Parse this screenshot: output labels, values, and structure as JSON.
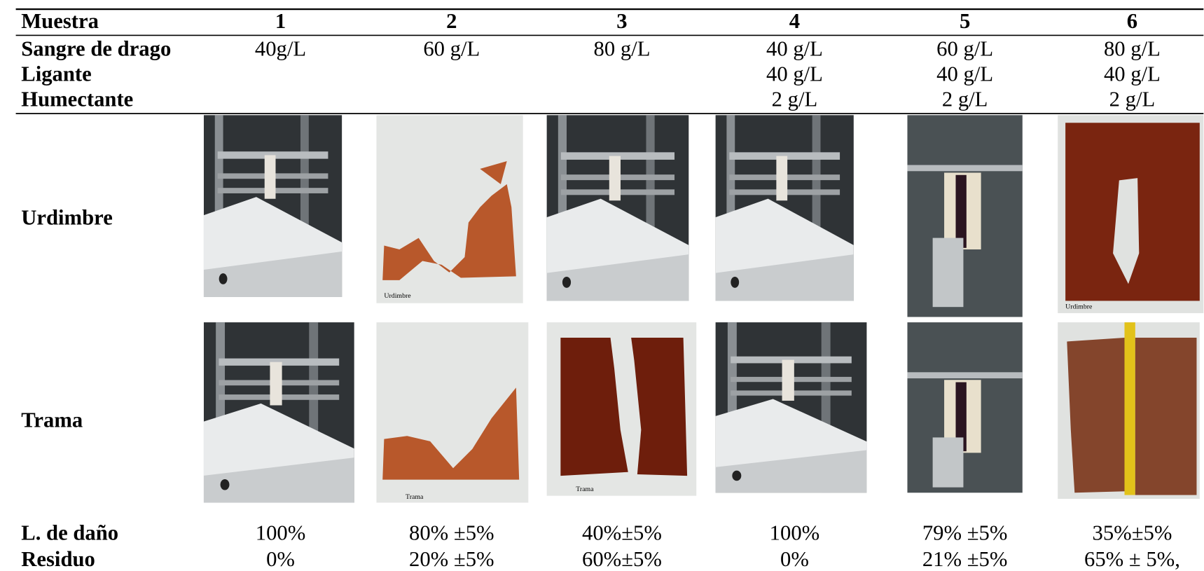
{
  "table": {
    "header": [
      "Muestra",
      "1",
      "2",
      "3",
      "4",
      "5",
      "6"
    ],
    "rows": [
      {
        "label": "Sangre de drago",
        "cells": [
          "40g/L",
          "60 g/L",
          "80 g/L",
          "40 g/L",
          "60 g/L",
          "80 g/L"
        ]
      },
      {
        "label": "Ligante",
        "cells": [
          null,
          null,
          null,
          "40 g/L",
          "40 g/L",
          "40 g/L"
        ]
      },
      {
        "label": "Humectante",
        "cells": [
          null,
          null,
          null,
          "2 g/L",
          "2 g/L",
          "2 g/L"
        ]
      }
    ],
    "photo_rows": [
      {
        "label": "Urdimbre",
        "captions": [
          null,
          "Urdimbre",
          null,
          null,
          null,
          "Urdimbre"
        ]
      },
      {
        "label": "Trama",
        "captions": [
          null,
          "Trama",
          "Trama",
          null,
          null,
          null
        ]
      }
    ],
    "result_rows": [
      {
        "label": "L. de daño",
        "cells": [
          "100%",
          "80% ±5%",
          "40%±5%",
          "100%",
          "79% ±5%",
          "35%±5%"
        ]
      },
      {
        "label": "Residuo",
        "cells": [
          "0%",
          "20% ±5%",
          "60%±5%",
          "0%",
          "21% ±5%",
          "65% ± 5%,"
        ]
      }
    ]
  }
}
